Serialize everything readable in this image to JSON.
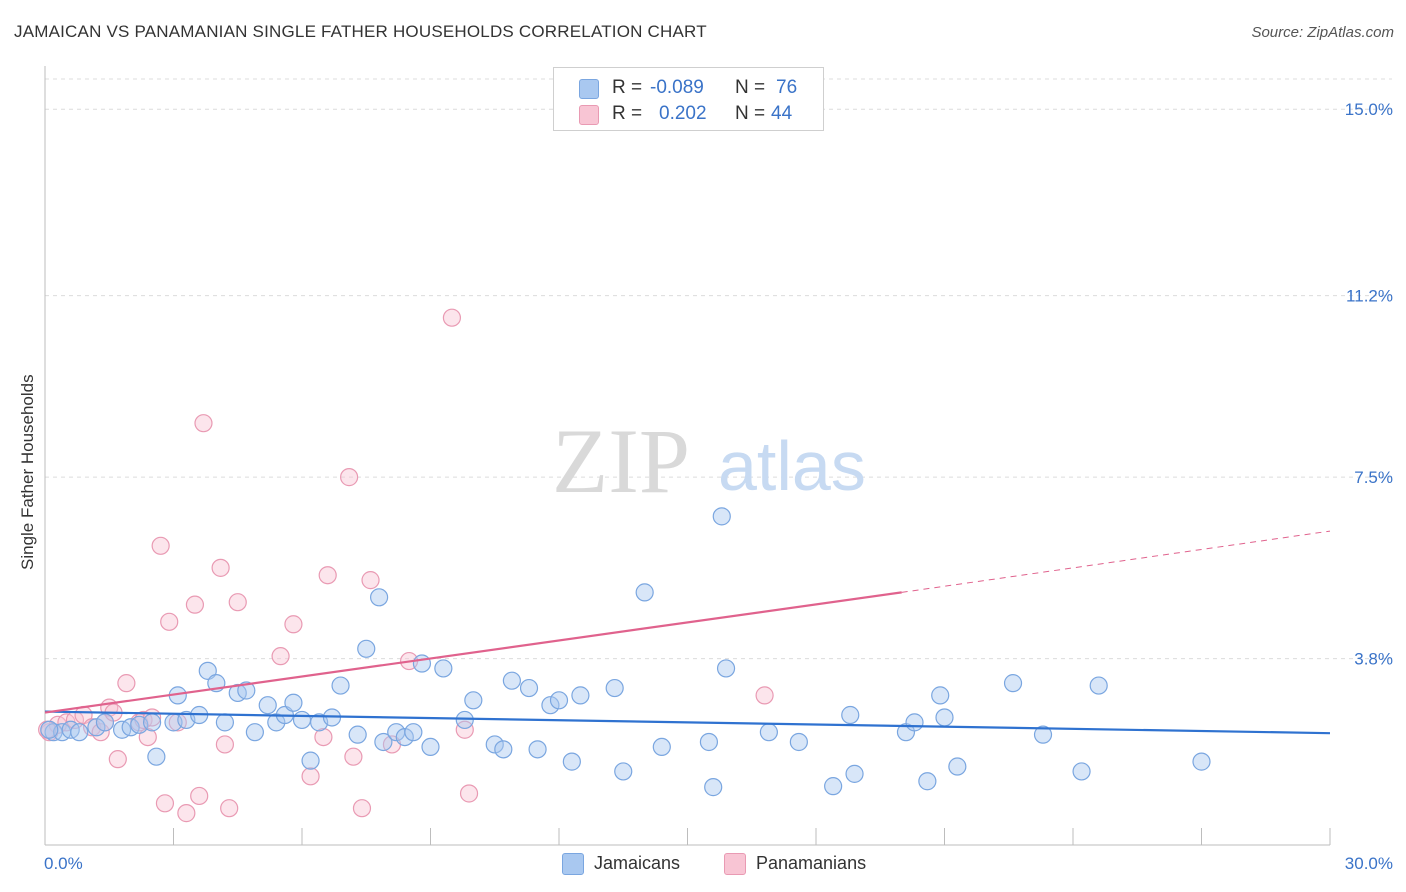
{
  "title": "JAMAICAN VS PANAMANIAN SINGLE FATHER HOUSEHOLDS CORRELATION CHART",
  "source": "Source: ZipAtlas.com",
  "watermark": {
    "zip": "ZIP",
    "atlas": "atlas"
  },
  "legend": {
    "rows": [
      {
        "r_label": "R =",
        "r_value": "-0.089",
        "n_label": "N =",
        "n_value": "76",
        "color": "#a9c8f0",
        "stroke": "#7aa6e0"
      },
      {
        "r_label": "R =",
        "r_value": "0.202",
        "n_label": "N =",
        "n_value": "44",
        "color": "#f8c5d4",
        "stroke": "#e99ab3"
      }
    ]
  },
  "bottom_legend": [
    {
      "label": "Jamaicans",
      "color": "#a9c8f0",
      "stroke": "#7aa6e0"
    },
    {
      "label": "Panamanians",
      "color": "#f8c5d4",
      "stroke": "#e99ab3"
    }
  ],
  "chart_data": {
    "type": "scatter",
    "title": "JAMAICAN VS PANAMANIAN SINGLE FATHER HOUSEHOLDS CORRELATION CHART",
    "xlabel": "",
    "ylabel": "Single Father Households",
    "xlim": [
      0,
      30
    ],
    "ylim": [
      0,
      15.8
    ],
    "x_tick_labels": [
      "0.0%",
      "30.0%"
    ],
    "y_ticks": [
      3.8,
      7.5,
      11.2,
      15.0
    ],
    "y_tick_labels": [
      "3.8%",
      "7.5%",
      "11.2%",
      "15.0%"
    ],
    "grid": "horizontal dashed",
    "legend_position": "top-center",
    "series": [
      {
        "name": "Jamaicans",
        "color": "#7aa6e0",
        "fill": "#a9c8f0",
        "trend": {
          "x": [
            0,
            30
          ],
          "y": [
            2.72,
            2.28
          ],
          "color": "#2f72d0"
        },
        "points": [
          [
            0.2,
            2.3
          ],
          [
            0.4,
            2.3
          ],
          [
            0.6,
            2.35
          ],
          [
            0.8,
            2.3
          ],
          [
            1.2,
            2.4
          ],
          [
            1.4,
            2.5
          ],
          [
            1.8,
            2.35
          ],
          [
            2.0,
            2.4
          ],
          [
            2.2,
            2.45
          ],
          [
            2.5,
            2.5
          ],
          [
            2.6,
            1.8
          ],
          [
            3.0,
            2.5
          ],
          [
            3.1,
            3.05
          ],
          [
            3.3,
            2.55
          ],
          [
            3.6,
            2.65
          ],
          [
            3.8,
            3.55
          ],
          [
            4.0,
            3.3
          ],
          [
            4.2,
            2.5
          ],
          [
            4.5,
            3.1
          ],
          [
            4.7,
            3.15
          ],
          [
            4.9,
            2.3
          ],
          [
            5.2,
            2.85
          ],
          [
            5.4,
            2.5
          ],
          [
            5.6,
            2.65
          ],
          [
            5.8,
            2.9
          ],
          [
            6.0,
            2.55
          ],
          [
            6.2,
            1.72
          ],
          [
            6.4,
            2.5
          ],
          [
            6.7,
            2.6
          ],
          [
            6.9,
            3.25
          ],
          [
            7.3,
            2.25
          ],
          [
            7.5,
            4.0
          ],
          [
            7.8,
            5.05
          ],
          [
            7.9,
            2.1
          ],
          [
            8.2,
            2.3
          ],
          [
            8.4,
            2.2
          ],
          [
            8.6,
            2.3
          ],
          [
            8.8,
            3.7
          ],
          [
            9.0,
            2.0
          ],
          [
            9.3,
            3.6
          ],
          [
            9.8,
            2.55
          ],
          [
            10.0,
            2.95
          ],
          [
            10.5,
            2.05
          ],
          [
            10.7,
            1.95
          ],
          [
            10.9,
            3.35
          ],
          [
            11.3,
            3.2
          ],
          [
            11.5,
            1.95
          ],
          [
            11.8,
            2.85
          ],
          [
            12.0,
            2.95
          ],
          [
            12.3,
            1.7
          ],
          [
            12.5,
            3.05
          ],
          [
            13.3,
            3.2
          ],
          [
            13.5,
            1.5
          ],
          [
            14.0,
            5.15
          ],
          [
            14.4,
            2.0
          ],
          [
            15.5,
            2.1
          ],
          [
            15.6,
            1.18
          ],
          [
            15.8,
            6.7
          ],
          [
            15.9,
            3.6
          ],
          [
            16.9,
            2.3
          ],
          [
            17.6,
            2.1
          ],
          [
            18.4,
            1.2
          ],
          [
            18.8,
            2.65
          ],
          [
            18.9,
            1.45
          ],
          [
            20.1,
            2.3
          ],
          [
            20.3,
            2.5
          ],
          [
            20.6,
            1.3
          ],
          [
            20.9,
            3.05
          ],
          [
            21.0,
            2.6
          ],
          [
            21.3,
            1.6
          ],
          [
            22.6,
            3.3
          ],
          [
            23.3,
            2.25
          ],
          [
            24.2,
            1.5
          ],
          [
            24.6,
            3.25
          ],
          [
            27.0,
            1.7
          ],
          [
            0.1,
            2.35
          ]
        ]
      },
      {
        "name": "Panamanians",
        "color": "#e99ab3",
        "fill": "#f8c5d4",
        "trend": {
          "x": [
            0,
            20.0
          ],
          "y": [
            2.7,
            5.15
          ],
          "color": "#e0628d",
          "dashed_to": [
            30,
            6.4
          ]
        },
        "points": [
          [
            0.1,
            2.3
          ],
          [
            0.3,
            2.45
          ],
          [
            0.5,
            2.5
          ],
          [
            0.7,
            2.55
          ],
          [
            0.9,
            2.65
          ],
          [
            1.1,
            2.4
          ],
          [
            1.3,
            2.3
          ],
          [
            1.4,
            2.5
          ],
          [
            1.5,
            2.8
          ],
          [
            1.6,
            2.7
          ],
          [
            1.7,
            1.75
          ],
          [
            1.9,
            3.3
          ],
          [
            2.2,
            2.5
          ],
          [
            2.3,
            2.55
          ],
          [
            2.4,
            2.2
          ],
          [
            2.5,
            2.6
          ],
          [
            2.7,
            6.1
          ],
          [
            2.8,
            0.85
          ],
          [
            2.9,
            4.55
          ],
          [
            3.1,
            2.5
          ],
          [
            3.3,
            0.65
          ],
          [
            3.5,
            4.9
          ],
          [
            3.6,
            1.0
          ],
          [
            3.7,
            8.6
          ],
          [
            4.1,
            5.65
          ],
          [
            4.2,
            2.05
          ],
          [
            4.3,
            0.75
          ],
          [
            4.5,
            4.95
          ],
          [
            5.5,
            3.85
          ],
          [
            5.8,
            4.5
          ],
          [
            6.2,
            1.4
          ],
          [
            6.5,
            2.2
          ],
          [
            6.6,
            5.5
          ],
          [
            7.1,
            7.5
          ],
          [
            7.2,
            1.8
          ],
          [
            7.4,
            0.75
          ],
          [
            7.6,
            5.4
          ],
          [
            8.1,
            2.05
          ],
          [
            8.5,
            3.75
          ],
          [
            9.5,
            10.75
          ],
          [
            9.8,
            2.35
          ],
          [
            9.9,
            1.05
          ],
          [
            16.8,
            3.05
          ],
          [
            0.05,
            2.35
          ]
        ]
      }
    ]
  }
}
